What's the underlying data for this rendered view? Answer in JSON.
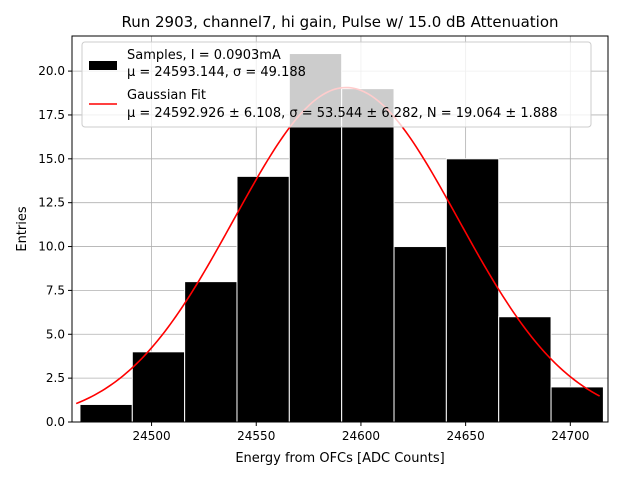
{
  "chart_data": {
    "type": "bar",
    "title": "Run 2903, channel7, hi gain, Pulse w/ 15.0 dB Attenuation",
    "xlabel": "Energy from OFCs [ADC Counts]",
    "ylabel": "Entries",
    "xlim": [
      24462,
      24718
    ],
    "ylim": [
      0,
      22
    ],
    "grid": true,
    "legend_position": "top-left",
    "x_ticks": [
      24500,
      24550,
      24600,
      24650,
      24700
    ],
    "x_tick_labels": [
      "24500",
      "24550",
      "24600",
      "24650",
      "24700"
    ],
    "y_ticks": [
      0,
      2.5,
      5,
      7.5,
      10,
      12.5,
      15,
      17.5,
      20
    ],
    "y_tick_labels": [
      "0.0",
      "2.5",
      "5.0",
      "7.5",
      "10.0",
      "12.5",
      "15.0",
      "17.5",
      "20.0"
    ],
    "bins": [
      {
        "x0": 24465.8,
        "x1": 24490.8,
        "count": 1
      },
      {
        "x0": 24490.8,
        "x1": 24515.8,
        "count": 4
      },
      {
        "x0": 24515.8,
        "x1": 24540.8,
        "count": 8
      },
      {
        "x0": 24540.8,
        "x1": 24565.8,
        "count": 14
      },
      {
        "x0": 24565.8,
        "x1": 24590.8,
        "count": 21
      },
      {
        "x0": 24590.8,
        "x1": 24615.8,
        "count": 19
      },
      {
        "x0": 24615.8,
        "x1": 24640.8,
        "count": 10
      },
      {
        "x0": 24640.8,
        "x1": 24665.8,
        "count": 15
      },
      {
        "x0": 24665.8,
        "x1": 24690.8,
        "count": 6
      },
      {
        "x0": 24690.8,
        "x1": 24715.8,
        "count": 2
      }
    ],
    "fit": {
      "mu": 24592.926,
      "sigma": 53.544,
      "N": 19.064,
      "x_range": [
        24464,
        24714
      ]
    },
    "series": [
      {
        "name": "Samples, I = 0.0903mA",
        "stats": "μ = 24593.144, σ = 49.188",
        "color": "#000000"
      },
      {
        "name": "Gaussian Fit",
        "stats": "μ = 24592.926 ± 6.108, σ = 53.544 ± 6.282, N = 19.064 ± 1.888",
        "color": "#ff0000"
      }
    ]
  }
}
